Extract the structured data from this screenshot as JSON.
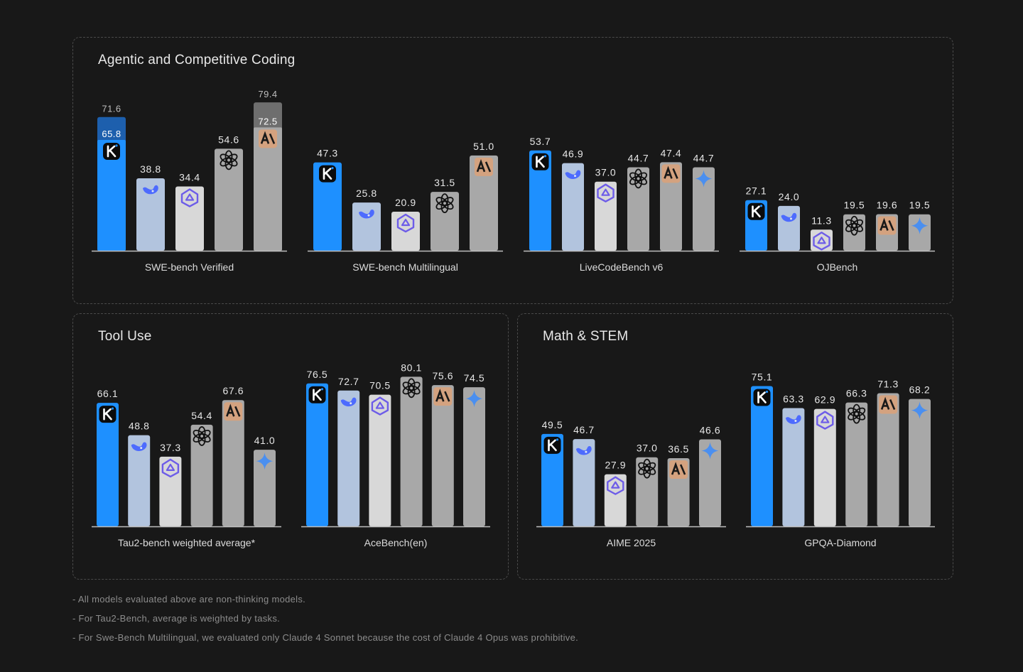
{
  "panels": [
    {
      "title": "Agentic and Competitive Coding"
    },
    {
      "title": "Tool Use"
    },
    {
      "title": "Math & STEM"
    }
  ],
  "colors": {
    "kimi": "#1e90ff",
    "kimi_dark": "#1d5fad",
    "deepseek": "#b2c4de",
    "qwen": "#d8d8d8",
    "gpt": "#a8a8a8",
    "claude": "#a8a8a8",
    "claude_ext": "#6e6e6e",
    "gemini": "#a8a8a8",
    "baseline": "#bdbdbd",
    "text": "#e6e6e6"
  },
  "chart_data": [
    {
      "type": "bar",
      "panel": "Agentic and Competitive Coding",
      "xlabel": "SWE-bench Verified",
      "categories": [
        "kimi",
        "deepseek",
        "qwen",
        "gpt",
        "claude"
      ],
      "values": [
        65.8,
        38.8,
        34.4,
        54.6,
        72.5
      ],
      "extended": [
        71.6,
        null,
        null,
        null,
        79.4
      ],
      "labels": [
        "65.8",
        "38.8",
        "34.4",
        "54.6",
        "72.5"
      ],
      "extended_labels": [
        "71.6",
        null,
        null,
        null,
        "79.4"
      ],
      "icons": [
        "kimi-logo",
        "deepseek-whale",
        "qwen-logo",
        "openai-logo",
        "anthropic-logo"
      ]
    },
    {
      "type": "bar",
      "panel": "Agentic and Competitive Coding",
      "xlabel": "SWE-bench Multilingual",
      "categories": [
        "kimi",
        "deepseek",
        "qwen",
        "gpt",
        "claude"
      ],
      "values": [
        47.3,
        25.8,
        20.9,
        31.5,
        51.0
      ],
      "labels": [
        "47.3",
        "25.8",
        "20.9",
        "31.5",
        "51.0"
      ],
      "icons": [
        "kimi-logo",
        "deepseek-whale",
        "qwen-logo",
        "openai-logo",
        "anthropic-logo"
      ]
    },
    {
      "type": "bar",
      "panel": "Agentic and Competitive Coding",
      "xlabel": "LiveCodeBench v6",
      "categories": [
        "kimi",
        "deepseek",
        "qwen",
        "gpt",
        "claude",
        "gemini"
      ],
      "values": [
        53.7,
        46.9,
        37.0,
        44.7,
        47.4,
        44.7
      ],
      "labels": [
        "53.7",
        "46.9",
        "37.0",
        "44.7",
        "47.4",
        "44.7"
      ],
      "icons": [
        "kimi-logo",
        "deepseek-whale",
        "qwen-logo",
        "openai-logo",
        "anthropic-logo",
        "gemini-star"
      ]
    },
    {
      "type": "bar",
      "panel": "Agentic and Competitive Coding",
      "xlabel": "OJBench",
      "categories": [
        "kimi",
        "deepseek",
        "qwen",
        "gpt",
        "claude",
        "gemini"
      ],
      "values": [
        27.1,
        24.0,
        11.3,
        19.5,
        19.6,
        19.5
      ],
      "labels": [
        "27.1",
        "24.0",
        "11.3",
        "19.5",
        "19.6",
        "19.5"
      ],
      "icons": [
        "kimi-logo",
        "deepseek-whale",
        "qwen-logo",
        "openai-logo",
        "anthropic-logo",
        "gemini-star"
      ]
    },
    {
      "type": "bar",
      "panel": "Tool Use",
      "xlabel": "Tau2-bench weighted average*",
      "categories": [
        "kimi",
        "deepseek",
        "qwen",
        "gpt",
        "claude",
        "gemini"
      ],
      "values": [
        66.1,
        48.8,
        37.3,
        54.4,
        67.6,
        41.0
      ],
      "labels": [
        "66.1",
        "48.8",
        "37.3",
        "54.4",
        "67.6",
        "41.0"
      ],
      "icons": [
        "kimi-logo",
        "deepseek-whale",
        "qwen-logo",
        "openai-logo",
        "anthropic-logo",
        "gemini-star"
      ]
    },
    {
      "type": "bar",
      "panel": "Tool Use",
      "xlabel": "AceBench(en)",
      "categories": [
        "kimi",
        "deepseek",
        "qwen",
        "gpt",
        "claude",
        "gemini"
      ],
      "values": [
        76.5,
        72.7,
        70.5,
        80.1,
        75.6,
        74.5
      ],
      "labels": [
        "76.5",
        "72.7",
        "70.5",
        "80.1",
        "75.6",
        "74.5"
      ],
      "icons": [
        "kimi-logo",
        "deepseek-whale",
        "qwen-logo",
        "openai-logo",
        "anthropic-logo",
        "gemini-star"
      ]
    },
    {
      "type": "bar",
      "panel": "Math & STEM",
      "xlabel": "AIME 2025",
      "categories": [
        "kimi",
        "deepseek",
        "qwen",
        "gpt",
        "claude",
        "gemini"
      ],
      "values": [
        49.5,
        46.7,
        27.9,
        37.0,
        36.5,
        46.6
      ],
      "labels": [
        "49.5",
        "46.7",
        "27.9",
        "37.0",
        "36.5",
        "46.6"
      ],
      "icons": [
        "kimi-logo",
        "deepseek-whale",
        "qwen-logo",
        "openai-logo",
        "anthropic-logo",
        "gemini-star"
      ]
    },
    {
      "type": "bar",
      "panel": "Math & STEM",
      "xlabel": "GPQA-Diamond",
      "categories": [
        "kimi",
        "deepseek",
        "qwen",
        "gpt",
        "claude",
        "gemini"
      ],
      "values": [
        75.1,
        63.3,
        62.9,
        66.3,
        71.3,
        68.2
      ],
      "labels": [
        "75.1",
        "63.3",
        "62.9",
        "66.3",
        "71.3",
        "68.2"
      ],
      "icons": [
        "kimi-logo",
        "deepseek-whale",
        "qwen-logo",
        "openai-logo",
        "anthropic-logo",
        "gemini-star"
      ]
    }
  ],
  "footnotes": [
    "- All models evaluated above are non-thinking models.",
    "- For Tau2-Bench, average is weighted by tasks.",
    "- For Swe-Bench Multilingual, we evaluated only Claude 4 Sonnet because the cost of Claude 4 Opus was prohibitive."
  ]
}
